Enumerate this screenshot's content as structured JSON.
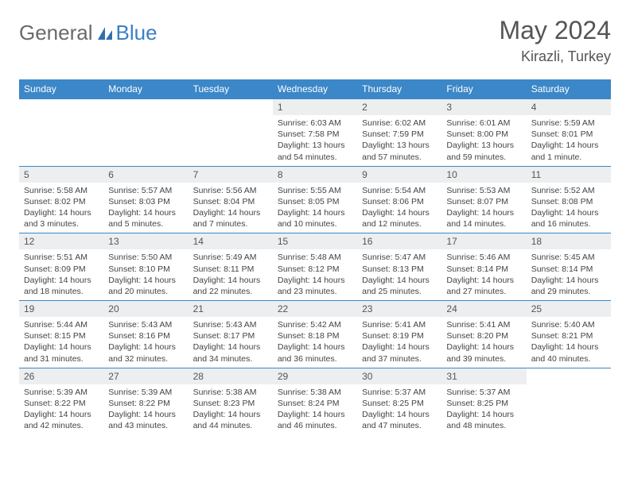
{
  "brand": {
    "part1": "General",
    "part2": "Blue"
  },
  "title": "May 2024",
  "location": "Kirazli, Turkey",
  "colors": {
    "header_bg": "#3b87c8",
    "daynum_bg": "#eceef0",
    "border": "#3b87c8",
    "text": "#444444",
    "title": "#555555"
  },
  "weekdays": [
    "Sunday",
    "Monday",
    "Tuesday",
    "Wednesday",
    "Thursday",
    "Friday",
    "Saturday"
  ],
  "weeks": [
    [
      {
        "num": "",
        "sunrise": "",
        "sunset": "",
        "daylight": "",
        "empty": true
      },
      {
        "num": "",
        "sunrise": "",
        "sunset": "",
        "daylight": "",
        "empty": true
      },
      {
        "num": "",
        "sunrise": "",
        "sunset": "",
        "daylight": "",
        "empty": true
      },
      {
        "num": "1",
        "sunrise": "Sunrise: 6:03 AM",
        "sunset": "Sunset: 7:58 PM",
        "daylight": "Daylight: 13 hours and 54 minutes."
      },
      {
        "num": "2",
        "sunrise": "Sunrise: 6:02 AM",
        "sunset": "Sunset: 7:59 PM",
        "daylight": "Daylight: 13 hours and 57 minutes."
      },
      {
        "num": "3",
        "sunrise": "Sunrise: 6:01 AM",
        "sunset": "Sunset: 8:00 PM",
        "daylight": "Daylight: 13 hours and 59 minutes."
      },
      {
        "num": "4",
        "sunrise": "Sunrise: 5:59 AM",
        "sunset": "Sunset: 8:01 PM",
        "daylight": "Daylight: 14 hours and 1 minute."
      }
    ],
    [
      {
        "num": "5",
        "sunrise": "Sunrise: 5:58 AM",
        "sunset": "Sunset: 8:02 PM",
        "daylight": "Daylight: 14 hours and 3 minutes."
      },
      {
        "num": "6",
        "sunrise": "Sunrise: 5:57 AM",
        "sunset": "Sunset: 8:03 PM",
        "daylight": "Daylight: 14 hours and 5 minutes."
      },
      {
        "num": "7",
        "sunrise": "Sunrise: 5:56 AM",
        "sunset": "Sunset: 8:04 PM",
        "daylight": "Daylight: 14 hours and 7 minutes."
      },
      {
        "num": "8",
        "sunrise": "Sunrise: 5:55 AM",
        "sunset": "Sunset: 8:05 PM",
        "daylight": "Daylight: 14 hours and 10 minutes."
      },
      {
        "num": "9",
        "sunrise": "Sunrise: 5:54 AM",
        "sunset": "Sunset: 8:06 PM",
        "daylight": "Daylight: 14 hours and 12 minutes."
      },
      {
        "num": "10",
        "sunrise": "Sunrise: 5:53 AM",
        "sunset": "Sunset: 8:07 PM",
        "daylight": "Daylight: 14 hours and 14 minutes."
      },
      {
        "num": "11",
        "sunrise": "Sunrise: 5:52 AM",
        "sunset": "Sunset: 8:08 PM",
        "daylight": "Daylight: 14 hours and 16 minutes."
      }
    ],
    [
      {
        "num": "12",
        "sunrise": "Sunrise: 5:51 AM",
        "sunset": "Sunset: 8:09 PM",
        "daylight": "Daylight: 14 hours and 18 minutes."
      },
      {
        "num": "13",
        "sunrise": "Sunrise: 5:50 AM",
        "sunset": "Sunset: 8:10 PM",
        "daylight": "Daylight: 14 hours and 20 minutes."
      },
      {
        "num": "14",
        "sunrise": "Sunrise: 5:49 AM",
        "sunset": "Sunset: 8:11 PM",
        "daylight": "Daylight: 14 hours and 22 minutes."
      },
      {
        "num": "15",
        "sunrise": "Sunrise: 5:48 AM",
        "sunset": "Sunset: 8:12 PM",
        "daylight": "Daylight: 14 hours and 23 minutes."
      },
      {
        "num": "16",
        "sunrise": "Sunrise: 5:47 AM",
        "sunset": "Sunset: 8:13 PM",
        "daylight": "Daylight: 14 hours and 25 minutes."
      },
      {
        "num": "17",
        "sunrise": "Sunrise: 5:46 AM",
        "sunset": "Sunset: 8:14 PM",
        "daylight": "Daylight: 14 hours and 27 minutes."
      },
      {
        "num": "18",
        "sunrise": "Sunrise: 5:45 AM",
        "sunset": "Sunset: 8:14 PM",
        "daylight": "Daylight: 14 hours and 29 minutes."
      }
    ],
    [
      {
        "num": "19",
        "sunrise": "Sunrise: 5:44 AM",
        "sunset": "Sunset: 8:15 PM",
        "daylight": "Daylight: 14 hours and 31 minutes."
      },
      {
        "num": "20",
        "sunrise": "Sunrise: 5:43 AM",
        "sunset": "Sunset: 8:16 PM",
        "daylight": "Daylight: 14 hours and 32 minutes."
      },
      {
        "num": "21",
        "sunrise": "Sunrise: 5:43 AM",
        "sunset": "Sunset: 8:17 PM",
        "daylight": "Daylight: 14 hours and 34 minutes."
      },
      {
        "num": "22",
        "sunrise": "Sunrise: 5:42 AM",
        "sunset": "Sunset: 8:18 PM",
        "daylight": "Daylight: 14 hours and 36 minutes."
      },
      {
        "num": "23",
        "sunrise": "Sunrise: 5:41 AM",
        "sunset": "Sunset: 8:19 PM",
        "daylight": "Daylight: 14 hours and 37 minutes."
      },
      {
        "num": "24",
        "sunrise": "Sunrise: 5:41 AM",
        "sunset": "Sunset: 8:20 PM",
        "daylight": "Daylight: 14 hours and 39 minutes."
      },
      {
        "num": "25",
        "sunrise": "Sunrise: 5:40 AM",
        "sunset": "Sunset: 8:21 PM",
        "daylight": "Daylight: 14 hours and 40 minutes."
      }
    ],
    [
      {
        "num": "26",
        "sunrise": "Sunrise: 5:39 AM",
        "sunset": "Sunset: 8:22 PM",
        "daylight": "Daylight: 14 hours and 42 minutes."
      },
      {
        "num": "27",
        "sunrise": "Sunrise: 5:39 AM",
        "sunset": "Sunset: 8:22 PM",
        "daylight": "Daylight: 14 hours and 43 minutes."
      },
      {
        "num": "28",
        "sunrise": "Sunrise: 5:38 AM",
        "sunset": "Sunset: 8:23 PM",
        "daylight": "Daylight: 14 hours and 44 minutes."
      },
      {
        "num": "29",
        "sunrise": "Sunrise: 5:38 AM",
        "sunset": "Sunset: 8:24 PM",
        "daylight": "Daylight: 14 hours and 46 minutes."
      },
      {
        "num": "30",
        "sunrise": "Sunrise: 5:37 AM",
        "sunset": "Sunset: 8:25 PM",
        "daylight": "Daylight: 14 hours and 47 minutes."
      },
      {
        "num": "31",
        "sunrise": "Sunrise: 5:37 AM",
        "sunset": "Sunset: 8:25 PM",
        "daylight": "Daylight: 14 hours and 48 minutes."
      },
      {
        "num": "",
        "sunrise": "",
        "sunset": "",
        "daylight": "",
        "empty": true
      }
    ]
  ]
}
